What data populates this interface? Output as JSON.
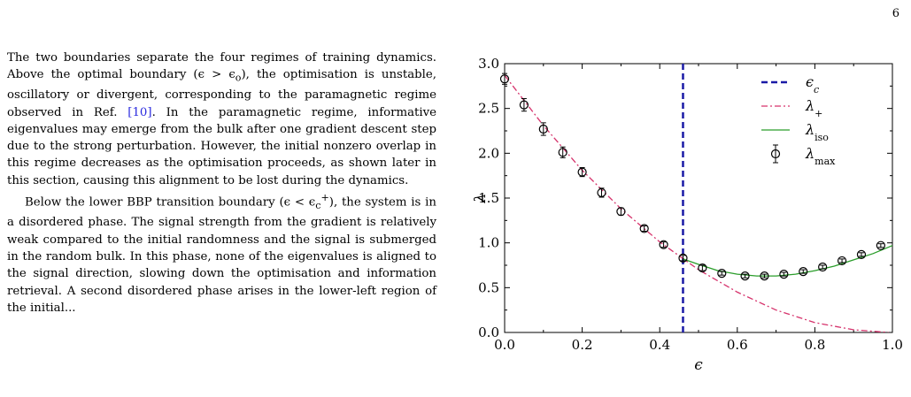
{
  "page_number": "6",
  "paragraph_1": {
    "part_1": "The two boundaries separate the four regimes of training dynamics. Above the optimal boundary (ϵ > ϵ",
    "sub_o": "o",
    "part_2": "), the optimisation is unstable, oscillatory or divergent, corresponding to the paramagnetic regime observed in Ref. ",
    "ref": "[10]",
    "part_3": ". In the paramagnetic regime, informative eigenvalues may emerge from the bulk after one gradient descent step due to the strong perturbation. However, the initial nonzero overlap in this regime decreases as the optimisation proceeds, as shown later in this section, causing this alignment to be lost during the dynamics."
  },
  "paragraph_2": {
    "part_1": "Below the lower BBP transition boundary (ϵ < ϵ",
    "sub_c": "c",
    "sup_plus": "+",
    "part_2": "), the system is in a disordered phase. The signal strength from the gradient is relatively weak compared to the initial randomness and the signal is submerged in the random bulk. In this phase, none of the eigenvalues is aligned to the signal direction, slowing down the optimisation and information retrieval. A second disordered phase arises in the lower-left region of the initial..."
  },
  "chart_data": {
    "type": "line",
    "xlabel": "ϵ",
    "ylabel": "λ",
    "xlim": [
      0.0,
      1.0
    ],
    "ylim": [
      0.0,
      3.0
    ],
    "x_ticks": [
      "0.0",
      "0.2",
      "0.4",
      "0.6",
      "0.8",
      "1.0"
    ],
    "y_ticks": [
      "0.0",
      "0.5",
      "1.0",
      "1.5",
      "2.0",
      "2.5",
      "3.0"
    ],
    "legend_position": "top-right",
    "critical_line": {
      "name": "ϵ",
      "name_sub": "c",
      "x": 0.46,
      "color": "#1a1aa6"
    },
    "series": [
      {
        "name": "λ",
        "name_sub": "+",
        "color": "#d6336c",
        "style": "dash-dot",
        "x": [
          0.0,
          0.1,
          0.2,
          0.3,
          0.4,
          0.5,
          0.6,
          0.7,
          0.8,
          0.9,
          0.99
        ],
        "y": [
          2.87,
          2.31,
          1.81,
          1.38,
          1.01,
          0.7,
          0.45,
          0.25,
          0.11,
          0.03,
          0.0
        ]
      },
      {
        "name": "λ",
        "name_sub": "iso",
        "color": "#2a9d2a",
        "style": "solid",
        "x": [
          0.46,
          0.5,
          0.55,
          0.6,
          0.65,
          0.7,
          0.75,
          0.8,
          0.85,
          0.9,
          0.95,
          1.0
        ],
        "y": [
          0.82,
          0.76,
          0.69,
          0.65,
          0.63,
          0.63,
          0.65,
          0.69,
          0.74,
          0.81,
          0.88,
          0.97
        ]
      },
      {
        "name": "λ",
        "name_sub": "max",
        "color": "#000000",
        "style": "markers-errorbars",
        "x": [
          0.0,
          0.05,
          0.1,
          0.15,
          0.2,
          0.25,
          0.3,
          0.36,
          0.41,
          0.46,
          0.51,
          0.56,
          0.62,
          0.67,
          0.72,
          0.77,
          0.82,
          0.87,
          0.92,
          0.97
        ],
        "y": [
          2.83,
          2.54,
          2.27,
          2.01,
          1.79,
          1.56,
          1.35,
          1.16,
          0.98,
          0.83,
          0.72,
          0.66,
          0.63,
          0.63,
          0.65,
          0.68,
          0.73,
          0.8,
          0.87,
          0.97
        ],
        "err": [
          0.06,
          0.07,
          0.07,
          0.06,
          0.05,
          0.05,
          0.04,
          0.03,
          0.03,
          0.03,
          0.03,
          0.02,
          0.02,
          0.02,
          0.02,
          0.02,
          0.02,
          0.02,
          0.02,
          0.02
        ]
      }
    ]
  }
}
